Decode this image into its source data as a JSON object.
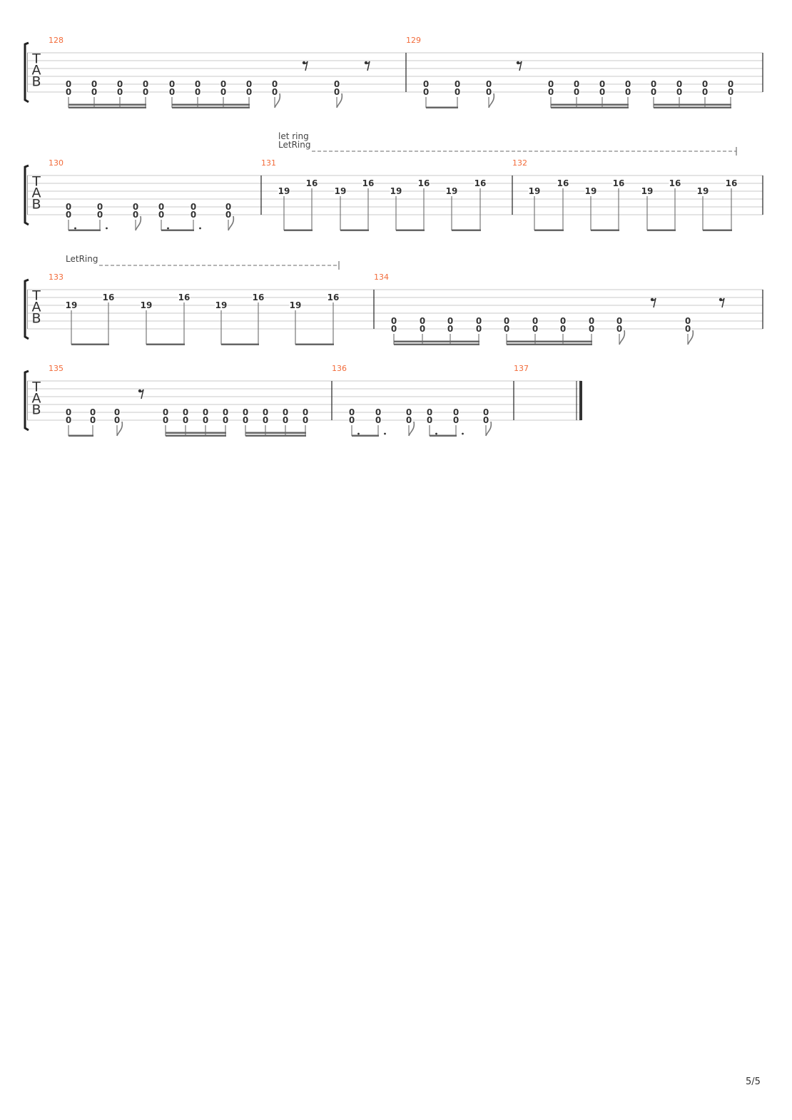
{
  "tab_clef": [
    "T",
    "A",
    "B"
  ],
  "page_number": "5/5",
  "colors": {
    "measure_number": "#f26b3a",
    "staff_line": "#c8c8c8",
    "beam": "#666666",
    "text": "#333333"
  },
  "systems": [
    {
      "let_ring": null,
      "measures": [
        {
          "number": "128",
          "events": [
            {
              "notes": {
                "5": "0",
                "6": "0"
              },
              "dur": "16",
              "beam": 1
            },
            {
              "notes": {
                "5": "0",
                "6": "0"
              },
              "dur": "16",
              "beam": 1
            },
            {
              "notes": {
                "5": "0",
                "6": "0"
              },
              "dur": "16",
              "beam": 1
            },
            {
              "notes": {
                "5": "0",
                "6": "0"
              },
              "dur": "16",
              "beam": 1
            },
            {
              "notes": {
                "5": "0",
                "6": "0"
              },
              "dur": "16",
              "beam": 2
            },
            {
              "notes": {
                "5": "0",
                "6": "0"
              },
              "dur": "16",
              "beam": 2
            },
            {
              "notes": {
                "5": "0",
                "6": "0"
              },
              "dur": "16",
              "beam": 2
            },
            {
              "notes": {
                "5": "0",
                "6": "0"
              },
              "dur": "16",
              "beam": 2
            },
            {
              "notes": {
                "5": "0",
                "6": "0"
              },
              "dur": "8"
            },
            {
              "rest": "8"
            },
            {
              "notes": {
                "5": "0",
                "6": "0"
              },
              "dur": "8"
            },
            {
              "rest": "8"
            }
          ]
        },
        {
          "number": "129",
          "events": [
            {
              "notes": {
                "5": "0",
                "6": "0"
              },
              "dur": "8",
              "beam": 1
            },
            {
              "notes": {
                "5": "0",
                "6": "0"
              },
              "dur": "8",
              "beam": 1
            },
            {
              "notes": {
                "5": "0",
                "6": "0"
              },
              "dur": "8"
            },
            {
              "rest": "8"
            },
            {
              "notes": {
                "5": "0",
                "6": "0"
              },
              "dur": "16",
              "beam": 2
            },
            {
              "notes": {
                "5": "0",
                "6": "0"
              },
              "dur": "16",
              "beam": 2
            },
            {
              "notes": {
                "5": "0",
                "6": "0"
              },
              "dur": "16",
              "beam": 2
            },
            {
              "notes": {
                "5": "0",
                "6": "0"
              },
              "dur": "16",
              "beam": 2
            },
            {
              "notes": {
                "5": "0",
                "6": "0"
              },
              "dur": "16",
              "beam": 3
            },
            {
              "notes": {
                "5": "0",
                "6": "0"
              },
              "dur": "16",
              "beam": 3
            },
            {
              "notes": {
                "5": "0",
                "6": "0"
              },
              "dur": "16",
              "beam": 3
            },
            {
              "notes": {
                "5": "0",
                "6": "0"
              },
              "dur": "16",
              "beam": 3
            }
          ]
        }
      ]
    },
    {
      "let_ring": {
        "label1": "let ring",
        "label2": "LetRing"
      },
      "measures": [
        {
          "number": "130",
          "events": [
            {
              "notes": {
                "5": "0",
                "6": "0"
              },
              "dur": "8.",
              "beam": 1
            },
            {
              "notes": {
                "5": "0",
                "6": "0"
              },
              "dur": "8.",
              "beam": 1
            },
            {
              "notes": {
                "5": "0",
                "6": "0"
              },
              "dur": "8"
            },
            {
              "notes": {
                "5": "0",
                "6": "0"
              },
              "dur": "8.",
              "beam": 2
            },
            {
              "notes": {
                "5": "0",
                "6": "0"
              },
              "dur": "8.",
              "beam": 2
            },
            {
              "notes": {
                "5": "0",
                "6": "0"
              },
              "dur": "8"
            }
          ]
        },
        {
          "number": "131",
          "events": [
            {
              "notes": {
                "3": "19"
              },
              "dur": "8",
              "beam": 1
            },
            {
              "notes": {
                "2": "16"
              },
              "dur": "8",
              "beam": 1
            },
            {
              "notes": {
                "3": "19"
              },
              "dur": "8",
              "beam": 2
            },
            {
              "notes": {
                "2": "16"
              },
              "dur": "8",
              "beam": 2
            },
            {
              "notes": {
                "3": "19"
              },
              "dur": "8",
              "beam": 3
            },
            {
              "notes": {
                "2": "16"
              },
              "dur": "8",
              "beam": 3
            },
            {
              "notes": {
                "3": "19"
              },
              "dur": "8",
              "beam": 4
            },
            {
              "notes": {
                "2": "16"
              },
              "dur": "8",
              "beam": 4
            }
          ]
        },
        {
          "number": "132",
          "events": [
            {
              "notes": {
                "3": "19"
              },
              "dur": "8",
              "beam": 1
            },
            {
              "notes": {
                "2": "16"
              },
              "dur": "8",
              "beam": 1
            },
            {
              "notes": {
                "3": "19"
              },
              "dur": "8",
              "beam": 2
            },
            {
              "notes": {
                "2": "16"
              },
              "dur": "8",
              "beam": 2
            },
            {
              "notes": {
                "3": "19"
              },
              "dur": "8",
              "beam": 3
            },
            {
              "notes": {
                "2": "16"
              },
              "dur": "8",
              "beam": 3
            },
            {
              "notes": {
                "3": "19"
              },
              "dur": "8",
              "beam": 4
            },
            {
              "notes": {
                "2": "16"
              },
              "dur": "8",
              "beam": 4
            }
          ]
        }
      ]
    },
    {
      "let_ring": {
        "label1": "",
        "label2": "LetRing"
      },
      "measures": [
        {
          "number": "133",
          "events": [
            {
              "notes": {
                "3": "19"
              },
              "dur": "8",
              "beam": 1
            },
            {
              "notes": {
                "2": "16"
              },
              "dur": "8",
              "beam": 1
            },
            {
              "notes": {
                "3": "19"
              },
              "dur": "8",
              "beam": 2
            },
            {
              "notes": {
                "2": "16"
              },
              "dur": "8",
              "beam": 2
            },
            {
              "notes": {
                "3": "19"
              },
              "dur": "8",
              "beam": 3
            },
            {
              "notes": {
                "2": "16"
              },
              "dur": "8",
              "beam": 3
            },
            {
              "notes": {
                "3": "19"
              },
              "dur": "8",
              "beam": 4
            },
            {
              "notes": {
                "2": "16"
              },
              "dur": "8",
              "beam": 4
            }
          ]
        },
        {
          "number": "134",
          "events": [
            {
              "notes": {
                "5": "0",
                "6": "0"
              },
              "dur": "16",
              "beam": 1
            },
            {
              "notes": {
                "5": "0",
                "6": "0"
              },
              "dur": "16",
              "beam": 1
            },
            {
              "notes": {
                "5": "0",
                "6": "0"
              },
              "dur": "16",
              "beam": 1
            },
            {
              "notes": {
                "5": "0",
                "6": "0"
              },
              "dur": "16",
              "beam": 1
            },
            {
              "notes": {
                "5": "0",
                "6": "0"
              },
              "dur": "16",
              "beam": 2
            },
            {
              "notes": {
                "5": "0",
                "6": "0"
              },
              "dur": "16",
              "beam": 2
            },
            {
              "notes": {
                "5": "0",
                "6": "0"
              },
              "dur": "16",
              "beam": 2
            },
            {
              "notes": {
                "5": "0",
                "6": "0"
              },
              "dur": "16",
              "beam": 2
            },
            {
              "notes": {
                "5": "0",
                "6": "0"
              },
              "dur": "8"
            },
            {
              "rest": "8"
            },
            {
              "notes": {
                "5": "0",
                "6": "0"
              },
              "dur": "8"
            },
            {
              "rest": "8"
            }
          ]
        }
      ]
    },
    {
      "let_ring": null,
      "measures": [
        {
          "number": "135",
          "events": [
            {
              "notes": {
                "5": "0",
                "6": "0"
              },
              "dur": "8",
              "beam": 1
            },
            {
              "notes": {
                "5": "0",
                "6": "0"
              },
              "dur": "8",
              "beam": 1
            },
            {
              "notes": {
                "5": "0",
                "6": "0"
              },
              "dur": "8"
            },
            {
              "rest": "8"
            },
            {
              "notes": {
                "5": "0",
                "6": "0"
              },
              "dur": "16",
              "beam": 2
            },
            {
              "notes": {
                "5": "0",
                "6": "0"
              },
              "dur": "16",
              "beam": 2
            },
            {
              "notes": {
                "5": "0",
                "6": "0"
              },
              "dur": "16",
              "beam": 2
            },
            {
              "notes": {
                "5": "0",
                "6": "0"
              },
              "dur": "16",
              "beam": 2
            },
            {
              "notes": {
                "5": "0",
                "6": "0"
              },
              "dur": "16",
              "beam": 3
            },
            {
              "notes": {
                "5": "0",
                "6": "0"
              },
              "dur": "16",
              "beam": 3
            },
            {
              "notes": {
                "5": "0",
                "6": "0"
              },
              "dur": "16",
              "beam": 3
            },
            {
              "notes": {
                "5": "0",
                "6": "0"
              },
              "dur": "16",
              "beam": 3
            }
          ]
        },
        {
          "number": "136",
          "events": [
            {
              "notes": {
                "5": "0",
                "6": "0"
              },
              "dur": "8.",
              "beam": 1
            },
            {
              "notes": {
                "5": "0",
                "6": "0"
              },
              "dur": "8.",
              "beam": 1
            },
            {
              "notes": {
                "5": "0",
                "6": "0"
              },
              "dur": "8"
            },
            {
              "notes": {
                "5": "0",
                "6": "0"
              },
              "dur": "8.",
              "beam": 2
            },
            {
              "notes": {
                "5": "0",
                "6": "0"
              },
              "dur": "8.",
              "beam": 2
            },
            {
              "notes": {
                "5": "0",
                "6": "0"
              },
              "dur": "8"
            }
          ]
        },
        {
          "number": "137",
          "events": [],
          "final_barline": true
        }
      ]
    }
  ]
}
